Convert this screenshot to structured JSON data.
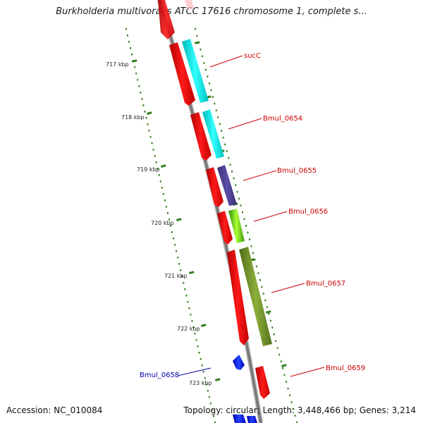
{
  "title": "Burkholderia multivorans ATCC 17616 chromosome 1, complete s...",
  "accession": "Accession: NC_010084",
  "topology": "Topology: circular; Length: 3,448,466 bp; Genes: 3,214",
  "tick_labels": [
    "717 kbp",
    "718 kbp",
    "719 kbp",
    "720 kbp",
    "721 kbp",
    "722 kbp",
    "723 kbp"
  ],
  "genes": [
    {
      "name": "sucC",
      "color": "#cc0000"
    },
    {
      "name": "Bmul_0654",
      "color": "#cc0000"
    },
    {
      "name": "Bmul_0655",
      "color": "#cc0000"
    },
    {
      "name": "Bmul_0656",
      "color": "#cc0000"
    },
    {
      "name": "Bmul_0657",
      "color": "#cc0000"
    },
    {
      "name": "Bmul_0658",
      "color": "#0000aa"
    },
    {
      "name": "Bmul_0659",
      "color": "#cc0000"
    }
  ],
  "colors": {
    "cds": "#ff0000",
    "cyan": "#00e5e5",
    "purple": "#4a3f8f",
    "green": "#55aa11",
    "olive": "#6b8e23",
    "blue": "#0011ee",
    "axis": "#808080",
    "tick": "#2e7d1a"
  }
}
